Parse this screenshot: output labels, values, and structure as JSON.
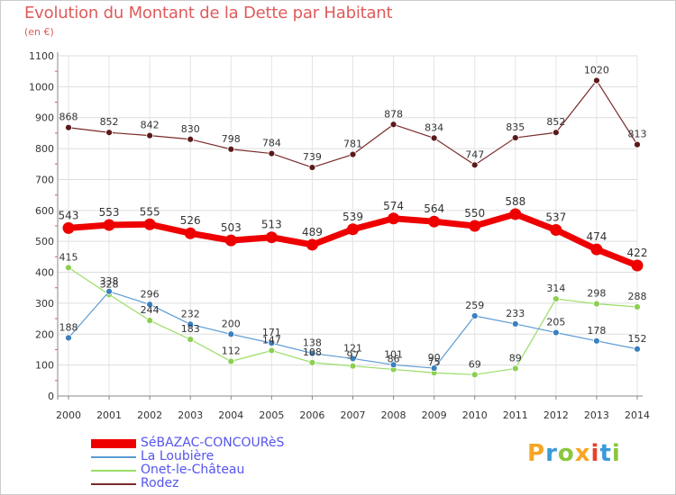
{
  "title": "Evolution du Montant de la Dette par Habitant",
  "subtitle": "(en €)",
  "logo_text": "Proxiti",
  "logo_colors": [
    "#f5a623",
    "#3a9ad9",
    "#8cc63f",
    "#f5a623",
    "#e8412c",
    "#3a9ad9",
    "#8cc63f"
  ],
  "chart_data": {
    "type": "line",
    "title": "Evolution du Montant de la Dette par Habitant",
    "subtitle": "(en €)",
    "x": [
      "2000",
      "2001",
      "2002",
      "2003",
      "2004",
      "2005",
      "2006",
      "2007",
      "2008",
      "2009",
      "2010",
      "2011",
      "2012",
      "2013",
      "2014"
    ],
    "ylim": [
      0,
      1100
    ],
    "yticks": [
      "0",
      "100",
      "200",
      "300",
      "400",
      "500",
      "600",
      "700",
      "800",
      "900",
      "1000",
      "1100"
    ],
    "grid": true,
    "legend_position": "bottom-left",
    "series": [
      {
        "name": "SéBAZAC-CONCOURèS",
        "color": "#ee0000",
        "values": [
          543,
          553,
          555,
          526,
          503,
          513,
          489,
          539,
          574,
          564,
          550,
          588,
          537,
          474,
          422
        ],
        "labels": [
          "543",
          "553",
          "555",
          "526",
          "503",
          "513",
          "489",
          "539",
          "574",
          "564",
          "550",
          "588",
          "537",
          "474",
          "422"
        ]
      },
      {
        "name": "La Loubière",
        "color": "#5b9bd5",
        "values": [
          188,
          338,
          296,
          232,
          200,
          171,
          138,
          121,
          101,
          90,
          259,
          233,
          205,
          178,
          152
        ],
        "labels": [
          "188",
          "338",
          "296",
          "232",
          "200",
          "171",
          "138",
          "121",
          "101",
          "90",
          "259",
          "233",
          "205",
          "178",
          "152"
        ]
      },
      {
        "name": "Onet-le-Château",
        "color": "#99dd66",
        "values": [
          415,
          328,
          244,
          183,
          112,
          147,
          108,
          97,
          86,
          75,
          69,
          89,
          314,
          298,
          288
        ],
        "labels": [
          "415",
          "328",
          "244",
          "183",
          "112",
          "147",
          "108",
          "97",
          "86",
          "75",
          "69",
          "89",
          "314",
          "298",
          "288"
        ]
      },
      {
        "name": "Rodez",
        "color": "#7a2a2a",
        "values": [
          868,
          852,
          842,
          830,
          798,
          784,
          739,
          781,
          878,
          834,
          747,
          835,
          852,
          1020,
          813
        ],
        "labels": [
          "868",
          "852",
          "842",
          "830",
          "798",
          "784",
          "739",
          "781",
          "878",
          "834",
          "747",
          "835",
          "852",
          "1020",
          "813"
        ]
      }
    ]
  }
}
